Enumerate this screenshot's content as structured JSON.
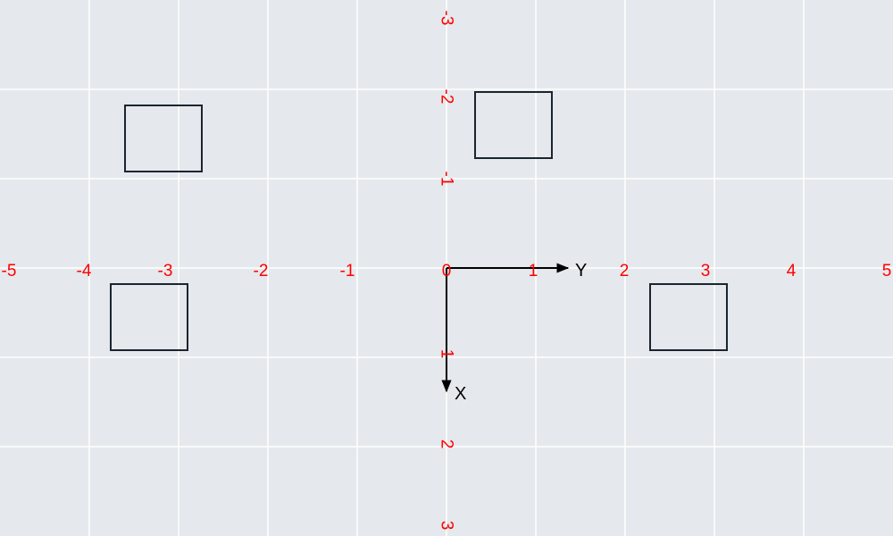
{
  "colors": {
    "background": "#e5e8ec",
    "grid": "#ffffff",
    "tick_label": "#ff0000",
    "axis": "#000000",
    "rect_stroke": "#1a2530"
  },
  "x_axis_name": "Y",
  "y_axis_name": "X",
  "h_tick_labels": [
    "-5",
    "-4",
    "-3",
    "-2",
    "-1",
    "0",
    "1",
    "2",
    "3",
    "4",
    "5"
  ],
  "v_tick_labels": [
    "-3",
    "-2",
    "-1",
    "1",
    "2",
    "3"
  ],
  "rectangles": [
    {
      "name": "rect-top-left"
    },
    {
      "name": "rect-top-center"
    },
    {
      "name": "rect-bottom-left"
    },
    {
      "name": "rect-bottom-right"
    }
  ]
}
